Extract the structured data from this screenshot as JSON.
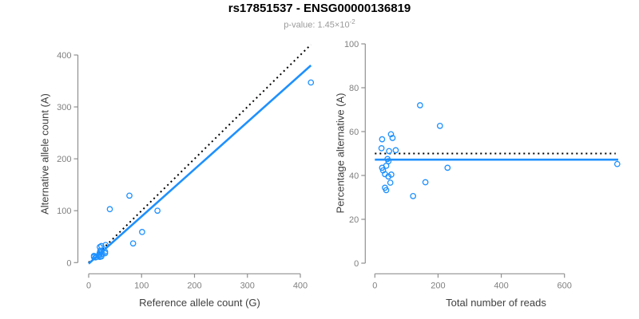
{
  "figure": {
    "title": "rs17851537 - ENSG00000136819",
    "subtitle_prefix": "p-value: ",
    "subtitle_base": "1.45×10",
    "subtitle_exponent": "-2"
  },
  "colors": {
    "point_stroke": "#1E90FF",
    "fit_line": "#1E90FF",
    "reference_line": "#000000",
    "axis_line": "#909090",
    "tick_label": "#808080",
    "axis_title": "#404040",
    "title": "#000000",
    "subtitle": "#9A9A9A",
    "background": "#FFFFFF"
  },
  "chart_data": [
    {
      "id": "allele-counts",
      "type": "scatter",
      "title": "",
      "xlabel": "Reference allele count (G)",
      "ylabel": "Alternative allele count (A)",
      "xlim": [
        0,
        420
      ],
      "ylim": [
        0,
        420
      ],
      "xticks": [
        0,
        100,
        200,
        300,
        400
      ],
      "yticks": [
        0,
        100,
        200,
        300,
        400
      ],
      "grid": false,
      "legend": "none",
      "points": [
        [
          10,
          13
        ],
        [
          10,
          11
        ],
        [
          13,
          10
        ],
        [
          15,
          11
        ],
        [
          19,
          13
        ],
        [
          20,
          16
        ],
        [
          21,
          30
        ],
        [
          21,
          19
        ],
        [
          21,
          11
        ],
        [
          22,
          23
        ],
        [
          23,
          20
        ],
        [
          24,
          32
        ],
        [
          24,
          12
        ],
        [
          26,
          17
        ],
        [
          31,
          21
        ],
        [
          31,
          18
        ],
        [
          32,
          34
        ],
        [
          40,
          103
        ],
        [
          77,
          129
        ],
        [
          84,
          37
        ],
        [
          101,
          59
        ],
        [
          130,
          100
        ],
        [
          420,
          347
        ]
      ],
      "lines": [
        {
          "name": "identity-line",
          "style": "dotted",
          "color": "#000000",
          "from": [
            0,
            0
          ],
          "to": [
            420,
            420
          ]
        },
        {
          "name": "fit-line",
          "style": "solid",
          "color": "#1E90FF",
          "from": [
            0,
            -2
          ],
          "to": [
            420,
            380
          ]
        }
      ]
    },
    {
      "id": "percentage-vs-reads",
      "type": "scatter",
      "title": "",
      "xlabel": "Total number of reads",
      "ylabel": "Percentage alternative (A)",
      "xlim": [
        0,
        770
      ],
      "ylim": [
        0,
        100
      ],
      "xticks": [
        0,
        200,
        400,
        600
      ],
      "yticks": [
        0,
        20,
        40,
        60,
        80,
        100
      ],
      "grid": false,
      "legend": "none",
      "points": [
        [
          23,
          56.5
        ],
        [
          21,
          52.4
        ],
        [
          23,
          43.5
        ],
        [
          26,
          42.3
        ],
        [
          32,
          40.6
        ],
        [
          36,
          44.4
        ],
        [
          51,
          58.8
        ],
        [
          40,
          47.5
        ],
        [
          32,
          34.4
        ],
        [
          45,
          51.1
        ],
        [
          43,
          46.5
        ],
        [
          56,
          57.1
        ],
        [
          36,
          33.3
        ],
        [
          43,
          39.5
        ],
        [
          52,
          40.4
        ],
        [
          49,
          36.7
        ],
        [
          66,
          51.5
        ],
        [
          143,
          72.0
        ],
        [
          206,
          62.6
        ],
        [
          121,
          30.6
        ],
        [
          160,
          36.9
        ],
        [
          230,
          43.5
        ],
        [
          767,
          45.2
        ]
      ],
      "lines": [
        {
          "name": "expected-50pct-line",
          "style": "dotted",
          "color": "#000000",
          "from": [
            0,
            50
          ],
          "to": [
            762,
            50
          ]
        },
        {
          "name": "fit-line",
          "style": "solid",
          "color": "#1E90FF",
          "from": [
            0,
            47.2
          ],
          "to": [
            770,
            47.2
          ]
        }
      ]
    }
  ]
}
